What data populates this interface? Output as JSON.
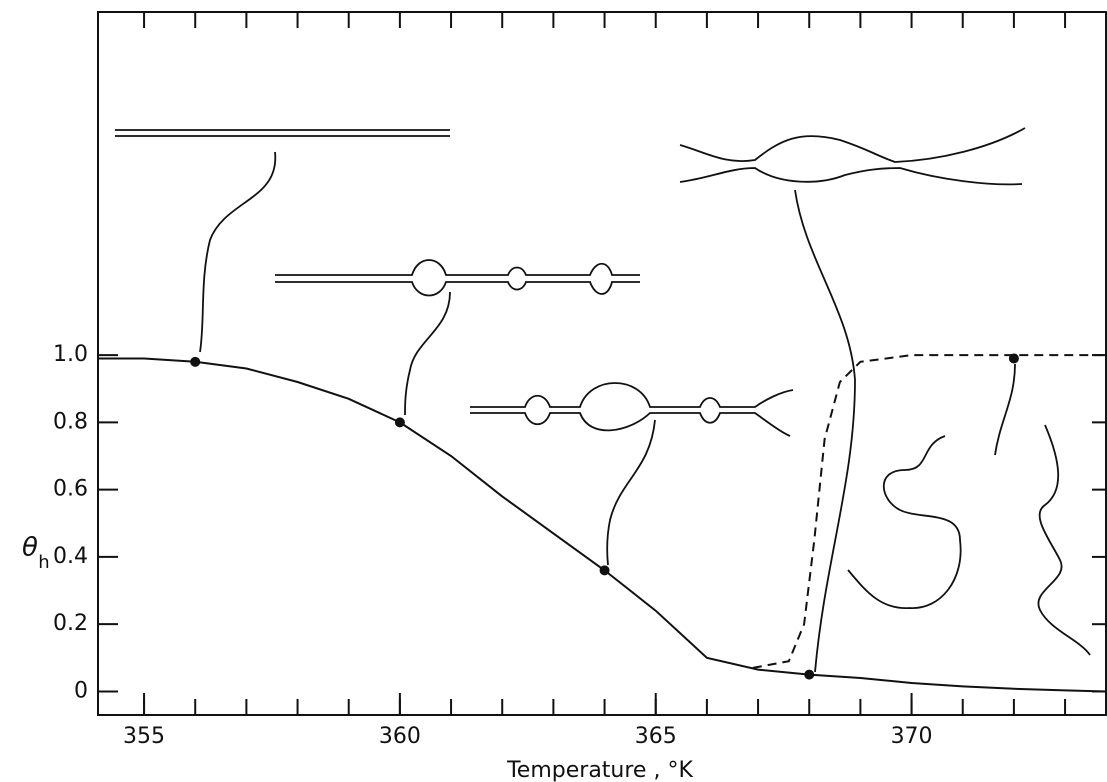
{
  "chart_data": {
    "type": "line",
    "x_label": "Temperature , °K",
    "y_label": "θ",
    "y_label_subscript": "h",
    "xlim": [
      354.1,
      373.8
    ],
    "ylim": [
      -0.07,
      2.02
    ],
    "xticks": [
      355,
      360,
      365,
      370
    ],
    "xminorticks": [
      355,
      356,
      357,
      358,
      359,
      360,
      361,
      362,
      363,
      364,
      365,
      366,
      367,
      368,
      369,
      370,
      371,
      372,
      373
    ],
    "yticks": [
      0,
      0.2,
      0.4,
      0.6,
      0.8,
      {
        "value": 1,
        "label": "1.0"
      }
    ],
    "series": [
      {
        "color": "#111111",
        "dash": false,
        "x": [
          354.1,
          355,
          356,
          357,
          358,
          359,
          360,
          361,
          362,
          363,
          364,
          365,
          366,
          367,
          368,
          369,
          370,
          371,
          372,
          373,
          373.8
        ],
        "values": [
          0.99,
          0.99,
          0.98,
          0.96,
          0.92,
          0.87,
          0.8,
          0.7,
          0.58,
          0.47,
          0.36,
          0.24,
          0.1,
          0.065,
          0.05,
          0.04,
          0.025,
          0.015,
          0.008,
          0.003,
          0.0
        ]
      },
      {
        "color": "#111111",
        "dash": true,
        "x": [
          366.9,
          367.6,
          367.9,
          368.1,
          368.3,
          368.6,
          369.0,
          369.5,
          370,
          372,
          373.8
        ],
        "values": [
          0.07,
          0.09,
          0.2,
          0.45,
          0.75,
          0.92,
          0.98,
          0.99,
          1.0,
          1.0,
          1.0
        ]
      },
      {
        "color": "#111111",
        "markers": true,
        "x": [
          356,
          360,
          364,
          368,
          372
        ],
        "values": [
          0.98,
          0.8,
          0.36,
          0.05,
          0.99
        ]
      }
    ]
  }
}
